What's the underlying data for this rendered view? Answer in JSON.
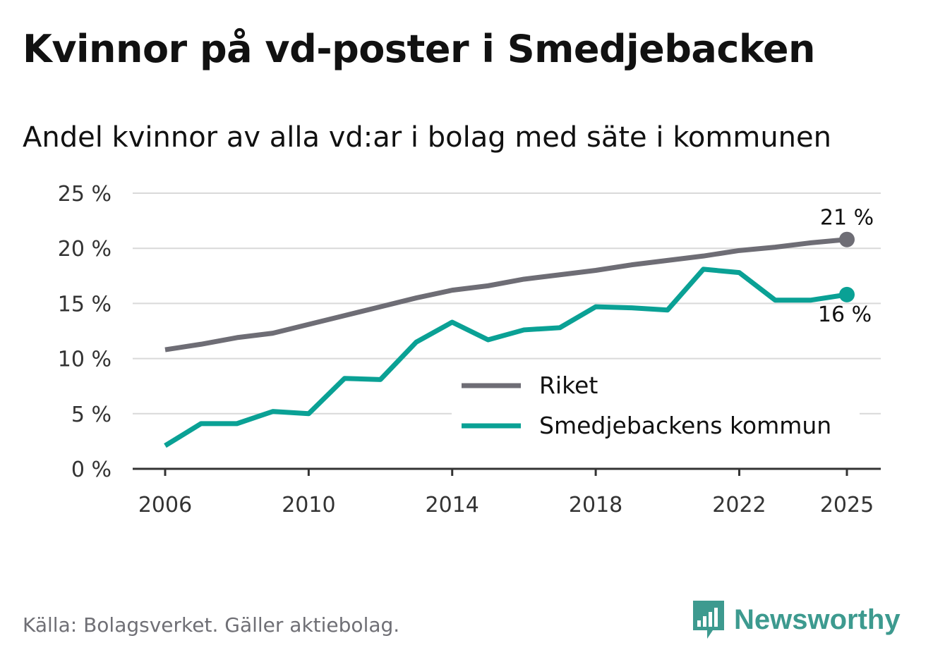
{
  "title": "Kvinnor på vd-poster i Smedjebacken",
  "subtitle": "Andel kvinnor av alla vd:ar i bolag med säte i kommunen",
  "source": "Källa: Bolagsverket. Gäller aktiebolag.",
  "brand": {
    "name": "Newsworthy",
    "icon": "newsworthy-logo-icon",
    "color": "#3d9a8f"
  },
  "chart_data": {
    "type": "line",
    "title": "Kvinnor på vd-poster i Smedjebacken",
    "xlabel": "",
    "ylabel": "",
    "x": [
      2006,
      2007,
      2008,
      2009,
      2010,
      2011,
      2012,
      2013,
      2014,
      2015,
      2016,
      2017,
      2018,
      2019,
      2020,
      2021,
      2022,
      2023,
      2024,
      2025
    ],
    "xticks": [
      2006,
      2010,
      2014,
      2018,
      2022,
      2025
    ],
    "xtick_labels": [
      "2006",
      "2010",
      "2014",
      "2018",
      "2022",
      "2025"
    ],
    "xlim": [
      2006,
      2025
    ],
    "ylim": [
      0,
      25
    ],
    "yticks": [
      0,
      5,
      10,
      15,
      20,
      25
    ],
    "ytick_labels": [
      "0 %",
      "5 %",
      "10 %",
      "15 %",
      "20 %",
      "25 %"
    ],
    "grid": true,
    "legend_position": "center-right",
    "series": [
      {
        "name": "Riket",
        "color": "#6e6d75",
        "values": [
          10.8,
          11.3,
          11.9,
          12.3,
          13.1,
          13.9,
          14.7,
          15.5,
          16.2,
          16.6,
          17.2,
          17.6,
          18.0,
          18.5,
          18.9,
          19.3,
          19.8,
          20.1,
          20.5,
          20.8
        ],
        "end_label": "21 %"
      },
      {
        "name": "Smedjebackens kommun",
        "color": "#0aa195",
        "values": [
          2.1,
          4.1,
          4.1,
          5.2,
          5.0,
          8.2,
          8.1,
          11.5,
          13.3,
          11.7,
          12.6,
          12.8,
          14.7,
          14.6,
          14.4,
          18.1,
          17.8,
          15.3,
          15.3,
          15.8
        ],
        "end_label": "16 %"
      }
    ]
  }
}
